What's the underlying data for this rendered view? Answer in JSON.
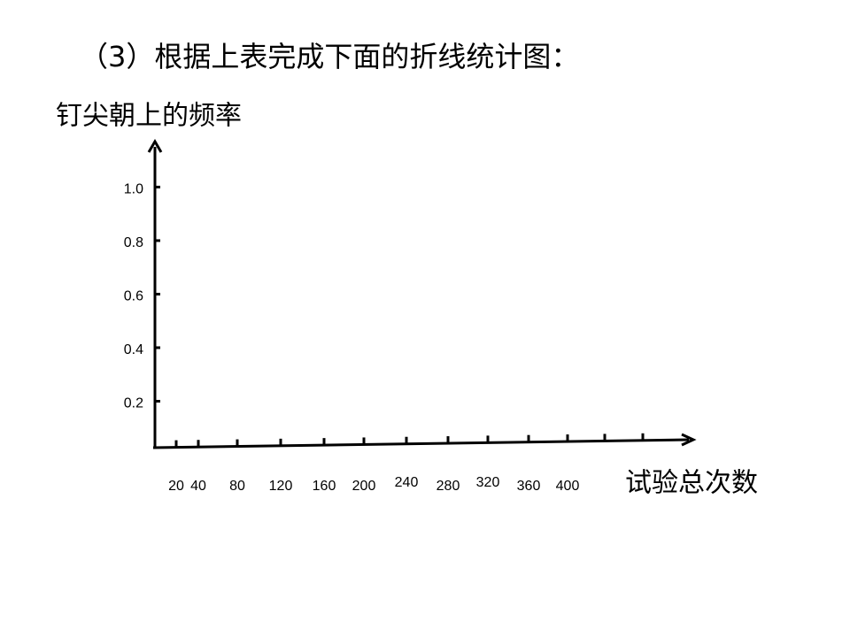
{
  "chart_data": {
    "type": "line",
    "title": "（3）根据上表完成下面的折线统计图：",
    "y_label": "钉尖朝上的频率",
    "x_label": "试验总次数",
    "categories": [
      "20",
      "40",
      "80",
      "120",
      "160",
      "200",
      "240",
      "280",
      "320",
      "360",
      "400",
      null,
      null
    ],
    "ylim": [
      0,
      1.17
    ],
    "yticks": [
      0.2,
      0.4,
      0.6,
      0.8,
      {
        "value": 1,
        "label": "1.0"
      }
    ]
  }
}
